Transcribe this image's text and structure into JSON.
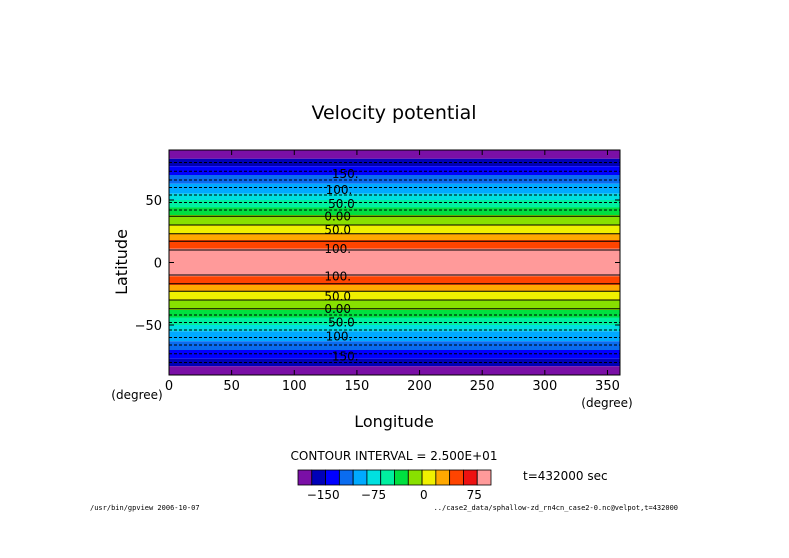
{
  "chart_data": {
    "type": "heatmap",
    "title": "Velocity potential",
    "xlabel": "Longitude",
    "ylabel": "Latitude",
    "x_unit": "(degree)",
    "y_unit": "(degree)",
    "xlim": [
      0,
      360
    ],
    "ylim": [
      -90,
      90
    ],
    "x_ticks": [
      0,
      50,
      100,
      150,
      200,
      250,
      300,
      350
    ],
    "y_ticks": [
      -50,
      0,
      50
    ],
    "y_tick_labels": [
      "−50",
      "0",
      "50"
    ],
    "field_description": "Field varies with latitude only (zonal bands), maximum near equator",
    "bands": [
      {
        "lat_min": 83,
        "lat_max": 90,
        "color": "#7a0fa6"
      },
      {
        "lat_min": 77,
        "lat_max": 83,
        "color": "#0000b8"
      },
      {
        "lat_min": 70,
        "lat_max": 77,
        "color": "#0000ff"
      },
      {
        "lat_min": 63,
        "lat_max": 70,
        "color": "#0a6cf0"
      },
      {
        "lat_min": 55,
        "lat_max": 63,
        "color": "#00aaff"
      },
      {
        "lat_min": 50,
        "lat_max": 55,
        "color": "#00e0e0"
      },
      {
        "lat_min": 44,
        "lat_max": 50,
        "color": "#00f0a0"
      },
      {
        "lat_min": 38,
        "lat_max": 44,
        "color": "#00e040"
      },
      {
        "lat_min": 30,
        "lat_max": 38,
        "color": "#88e000"
      },
      {
        "lat_min": 23,
        "lat_max": 30,
        "color": "#f0f000"
      },
      {
        "lat_min": 18,
        "lat_max": 23,
        "color": "#ffa800"
      },
      {
        "lat_min": 11,
        "lat_max": 18,
        "color": "#ff4400"
      },
      {
        "lat_min": -11,
        "lat_max": 11,
        "color": "#ff9a9a"
      },
      {
        "lat_min": -18,
        "lat_max": -11,
        "color": "#ff4400"
      },
      {
        "lat_min": -23,
        "lat_max": -18,
        "color": "#ffa800"
      },
      {
        "lat_min": -30,
        "lat_max": -23,
        "color": "#f0f000"
      },
      {
        "lat_min": -38,
        "lat_max": -30,
        "color": "#88e000"
      },
      {
        "lat_min": -44,
        "lat_max": -38,
        "color": "#00e040"
      },
      {
        "lat_min": -50,
        "lat_max": -44,
        "color": "#00f0a0"
      },
      {
        "lat_min": -55,
        "lat_max": -50,
        "color": "#00e0e0"
      },
      {
        "lat_min": -63,
        "lat_max": -55,
        "color": "#00aaff"
      },
      {
        "lat_min": -70,
        "lat_max": -63,
        "color": "#0a6cf0"
      },
      {
        "lat_min": -77,
        "lat_max": -70,
        "color": "#0000ff"
      },
      {
        "lat_min": -83,
        "lat_max": -77,
        "color": "#0000b8"
      },
      {
        "lat_min": -90,
        "lat_max": -83,
        "color": "#7a0fa6"
      }
    ],
    "contours": [
      {
        "lat": 80,
        "dashed": true
      },
      {
        "lat": 73,
        "dashed": true
      },
      {
        "lat": 66,
        "dashed": true
      },
      {
        "lat": 60,
        "dashed": true
      },
      {
        "lat": 54,
        "dashed": true
      },
      {
        "lat": 48,
        "dashed": true
      },
      {
        "lat": 42,
        "dashed": true
      },
      {
        "lat": 37,
        "dashed": false
      },
      {
        "lat": 30,
        "dashed": false
      },
      {
        "lat": 23,
        "dashed": false
      },
      {
        "lat": 17,
        "dashed": false
      },
      {
        "lat": 10,
        "dashed": false
      },
      {
        "lat": -10,
        "dashed": false
      },
      {
        "lat": -17,
        "dashed": false
      },
      {
        "lat": -23,
        "dashed": false
      },
      {
        "lat": -30,
        "dashed": false
      },
      {
        "lat": -37,
        "dashed": false
      },
      {
        "lat": -42,
        "dashed": true
      },
      {
        "lat": -48,
        "dashed": true
      },
      {
        "lat": -54,
        "dashed": true
      },
      {
        "lat": -60,
        "dashed": true
      },
      {
        "lat": -66,
        "dashed": true
      },
      {
        "lat": -73,
        "dashed": true
      },
      {
        "lat": -80,
        "dashed": true
      }
    ],
    "contour_labels": [
      {
        "text": "150.",
        "lat": 71,
        "lon": 130
      },
      {
        "text": "100.",
        "lat": 58,
        "lon": 125
      },
      {
        "text": "50.0",
        "lat": 47,
        "lon": 127
      },
      {
        "text": "0.00",
        "lat": 37,
        "lon": 124
      },
      {
        "text": "50.0",
        "lat": 26,
        "lon": 124
      },
      {
        "text": "100.",
        "lat": 11,
        "lon": 124
      },
      {
        "text": "100.",
        "lat": -11,
        "lon": 124
      },
      {
        "text": "50.0",
        "lat": -27,
        "lon": 124
      },
      {
        "text": "0.00",
        "lat": -37,
        "lon": 124
      },
      {
        "text": "50.0",
        "lat": -48,
        "lon": 127
      },
      {
        "text": "100.",
        "lat": -59,
        "lon": 125
      },
      {
        "text": "150.",
        "lat": -75,
        "lon": 130
      }
    ],
    "contour_interval_text": "CONTOUR INTERVAL = 2.500E+01",
    "time_text": "t=432000 sec",
    "colorbar": {
      "colors": [
        "#7a0fa6",
        "#0000b8",
        "#0000ff",
        "#0a6cf0",
        "#00aaff",
        "#00e0e0",
        "#00f0a0",
        "#00e040",
        "#88e000",
        "#f0f000",
        "#ffa800",
        "#ff4400",
        "#ee1111",
        "#ff9a9a"
      ],
      "min": -187.5,
      "max": 100,
      "ticks": [
        -150,
        -75,
        0,
        75
      ],
      "tick_labels": [
        "−150",
        "−75",
        "0",
        "75"
      ]
    }
  },
  "footer": {
    "left": "/usr/bin/gpview  2006-10-07",
    "right": "../case2_data/sphallow-zd_rn4cn_case2-0.nc@velpot,t=432000"
  }
}
